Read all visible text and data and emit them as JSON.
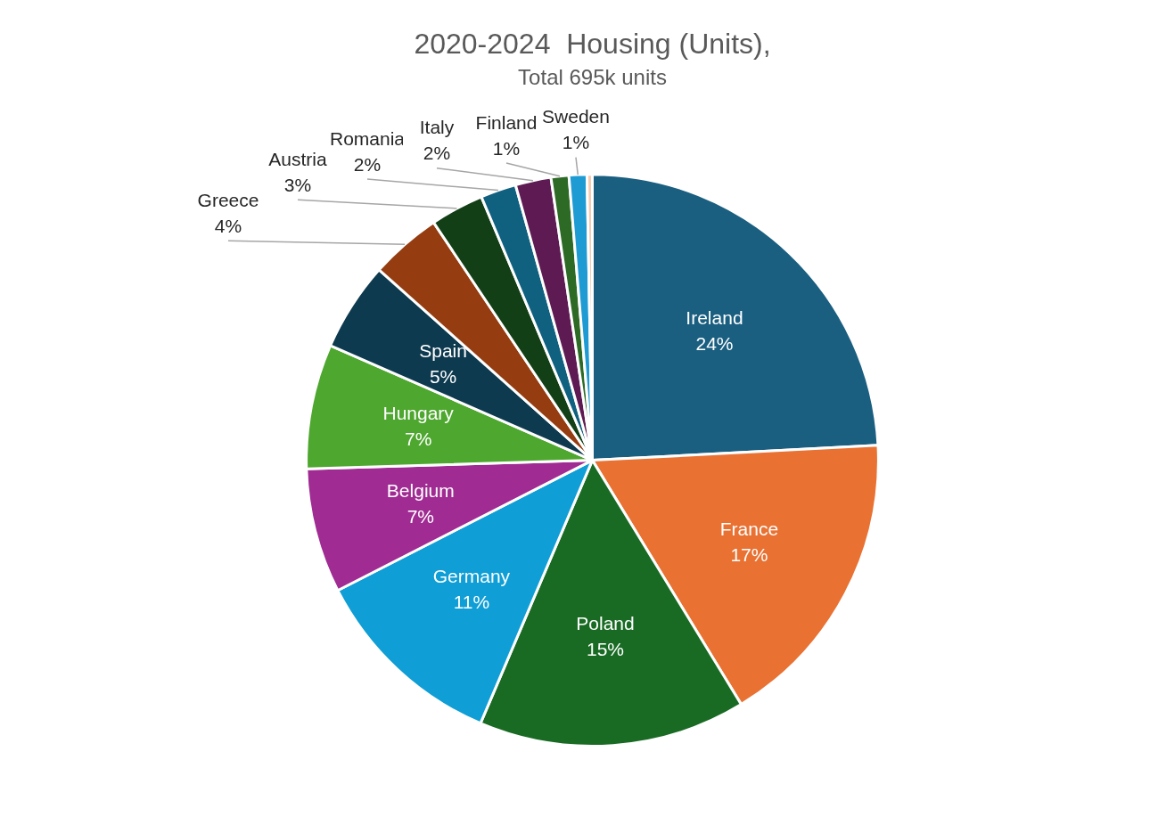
{
  "chart_data": {
    "type": "pie",
    "title": "2020-2024  Housing (Units),",
    "subtitle": "Total 695k units",
    "categories": [
      "Ireland",
      "France",
      "Poland",
      "Germany",
      "Belgium",
      "Hungary",
      "Spain",
      "Greece",
      "Austria",
      "Romania",
      "Italy",
      "Finland",
      "Sweden",
      null
    ],
    "values": [
      24,
      17,
      15,
      11,
      7,
      7,
      5,
      4,
      3,
      2,
      2,
      1,
      1,
      0.3
    ],
    "colors": [
      "#1a5e80",
      "#e97132",
      "#196b24",
      "#0f9ed5",
      "#a02b93",
      "#4ea72e",
      "#0e3a4f",
      "#953c11",
      "#133f16",
      "#10607f",
      "#5e1a52",
      "#2c6a26",
      "#1f9bd4",
      "#f8cbad"
    ],
    "value_labels": [
      "24%",
      "17%",
      "15%",
      "11%",
      "7%",
      "7%",
      "5%",
      "4%",
      "3%",
      "2%",
      "2%",
      "1%",
      "1%",
      null
    ],
    "legend": false
  }
}
